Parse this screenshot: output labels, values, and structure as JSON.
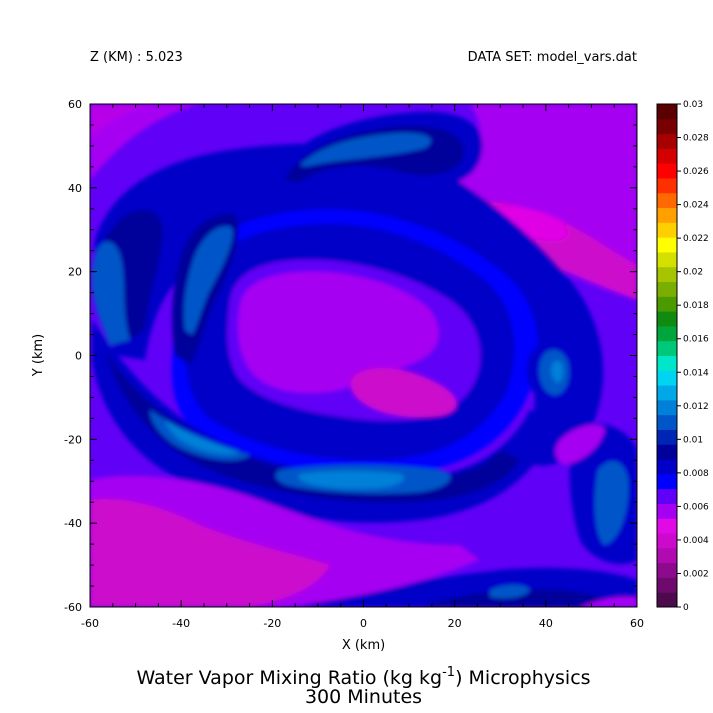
{
  "header": {
    "z_label": "Z (KM) : 5.023",
    "dataset_label": "DATA SET: model_vars.dat"
  },
  "title": {
    "line1_prefix": "Water Vapor Mixing Ratio (kg kg",
    "line1_exponent": "-1",
    "line1_suffix": ") Microphysics",
    "line2": "300 Minutes"
  },
  "chart_data": {
    "type": "heatmap",
    "subtype": "filled-contour",
    "variable": "Water Vapor Mixing Ratio",
    "units": "kg kg-1",
    "level_z_km": 5.023,
    "time_minutes": 300,
    "xlabel": "X (km)",
    "ylabel": "Y (km)",
    "xlim": [
      -60,
      60
    ],
    "ylim": [
      -60,
      60
    ],
    "x_ticks": [
      -60,
      -40,
      -20,
      0,
      20,
      40,
      60
    ],
    "y_ticks": [
      -60,
      -40,
      -20,
      0,
      20,
      40,
      60
    ],
    "colorbar": {
      "min": 0,
      "max": 0.03,
      "step": 0.002,
      "labels": [
        "0",
        "0.002",
        "0.004",
        "0.006",
        "0.008",
        "0.01",
        "0.012",
        "0.014",
        "0.016",
        "0.018",
        "0.02",
        "0.022",
        "0.024",
        "0.026",
        "0.028",
        "0.03"
      ],
      "colors": [
        "#4d0a4d",
        "#6e0a6e",
        "#8c0a8c",
        "#b00ab0",
        "#cc0acc",
        "#e00ae6",
        "#a600f2",
        "#6000f6",
        "#0000ff",
        "#0000c8",
        "#00009a",
        "#0024b4",
        "#0056c8",
        "#0080d8",
        "#00a8e8",
        "#00d4f0",
        "#00e6c8",
        "#00c87a",
        "#00a63c",
        "#108a10",
        "#4a9a00",
        "#7aae00",
        "#a6c400",
        "#d4e000",
        "#ffff00",
        "#ffd000",
        "#ffa000",
        "#ff6a00",
        "#ff3000",
        "#ff0000",
        "#d40000",
        "#a60000",
        "#780000",
        "#5a0000"
      ]
    },
    "colors": {
      "background_field": "#6000f6",
      "low": "#cc0acc",
      "lowest": "#e000e6",
      "mid": "#a600f2",
      "band_blue": "#0000ff",
      "band_navy": "#0000c8",
      "band_dark": "#00009a",
      "band_steel": "#0056c8",
      "band_cyan": "#0080d8"
    },
    "features": [
      {
        "region": "upper-left corner",
        "value_range": [
          0.004,
          0.006
        ]
      },
      {
        "region": "center inner core",
        "value_range": [
          0.004,
          0.007
        ]
      },
      {
        "region": "right-center core (x≈30, y≈33)",
        "value_range": [
          0.004,
          0.006
        ]
      },
      {
        "region": "lower-left corner",
        "value_range": [
          0.004,
          0.006
        ]
      },
      {
        "region": "spiral band",
        "value_range": [
          0.008,
          0.013
        ]
      },
      {
        "region": "eye at x≈42, y≈-3",
        "value_range": [
          0.011,
          0.013
        ]
      }
    ]
  }
}
